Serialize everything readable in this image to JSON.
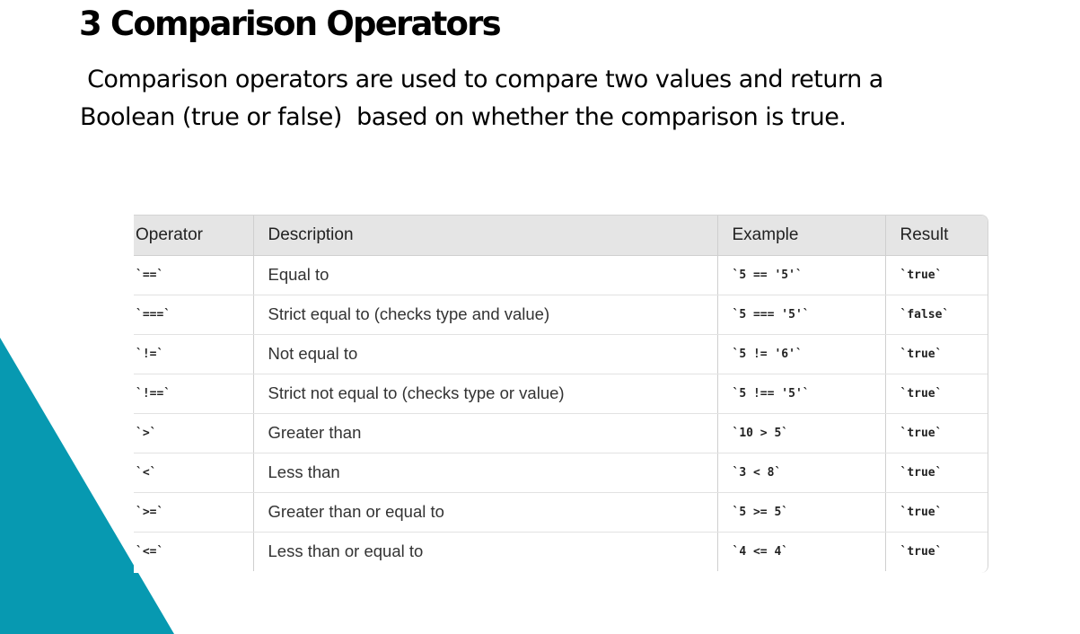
{
  "slide": {
    "title": "3 Comparison Operators",
    "body_line1": " Comparison operators are used to compare two values and return a",
    "body_line2": "Boolean (true or false)  based on whether the comparison is true.",
    "accent_color": "#0799B1"
  },
  "table": {
    "headers": [
      "Operator",
      "Description",
      "Example",
      "Result"
    ],
    "rows": [
      [
        "`==`",
        "Equal to",
        "`5 == '5'`",
        "`true`"
      ],
      [
        "`===`",
        "Strict equal to (checks type and value)",
        "`5 === '5'`",
        "`false`"
      ],
      [
        "`!=`",
        "Not equal to",
        "`5 != '6'`",
        "`true`"
      ],
      [
        "`!==`",
        "Strict not equal to (checks type or value)",
        "`5 !== '5'`",
        "`true`"
      ],
      [
        "`>`",
        "Greater than",
        "`10 > 5`",
        "`true`"
      ],
      [
        "`<`",
        "Less than",
        "`3 < 8`",
        "`true`"
      ],
      [
        "`>=`",
        "Greater than or equal to",
        "`5 >= 5`",
        "`true`"
      ],
      [
        "`<=`",
        "Less than or equal to",
        "`4 <= 4`",
        "`true`"
      ]
    ]
  }
}
